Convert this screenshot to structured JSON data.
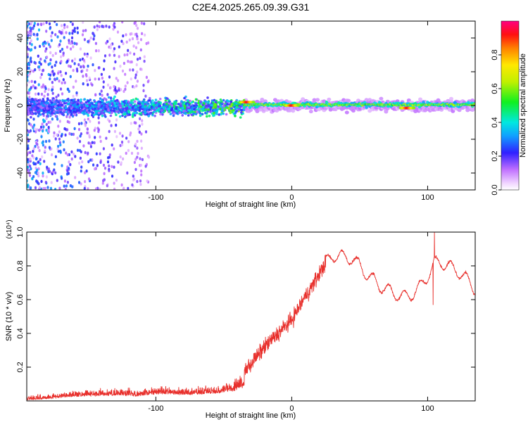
{
  "figure_title": "C2E4.2025.265.09.39.G31",
  "colors": {
    "snr_line": "#e8302c",
    "frame": "#000000",
    "spectrogram_bg": "#ffffff"
  },
  "chart_data": [
    {
      "type": "heatmap",
      "title": "C2E4.2025.265.09.39.G31",
      "xlabel": "Height of straight line (km)",
      "ylabel": "Frequency (Hz)",
      "xlim": [
        -195,
        135
      ],
      "ylim": [
        -50,
        50
      ],
      "x_ticks": [
        -100,
        0,
        100
      ],
      "y_ticks": [
        -40,
        -20,
        0,
        20,
        40
      ],
      "x_tick_labels": [
        "-100",
        "0",
        "100"
      ],
      "y_tick_labels": [
        "-40",
        "-20",
        "0",
        "20",
        "40"
      ],
      "colorbar": {
        "label": "Normalized spectral amplitude",
        "range": [
          0,
          1
        ],
        "ticks": [
          0.0,
          0.2,
          0.4,
          0.6,
          0.8
        ],
        "tick_labels": [
          "0.0",
          "0.2",
          "0.4",
          "0.6",
          "0.8"
        ],
        "colormap": "rainbow (white → magenta → blue → cyan → green → yellow → red)"
      },
      "features": [
        {
          "desc": "broadband scattered noise",
          "x_range": [
            -195,
            -105
          ],
          "freq_range": [
            -50,
            50
          ],
          "amplitude": 0.2
        },
        {
          "desc": "noisy band around 0 Hz",
          "x_range": [
            -195,
            -35
          ],
          "freq_range": [
            -8,
            6
          ],
          "amplitude": 0.35
        },
        {
          "desc": "stable narrow signal near 0 Hz",
          "x_range": [
            -35,
            135
          ],
          "freq_range": [
            -2,
            3
          ],
          "amplitude": 0.7
        },
        {
          "desc": "peak",
          "x": -33,
          "freq": 2,
          "amplitude": 0.95
        },
        {
          "desc": "peak",
          "x": 0,
          "freq": 0,
          "amplitude": 0.95
        },
        {
          "desc": "peak",
          "x": 85,
          "freq": -1.5,
          "amplitude": 0.95
        }
      ]
    },
    {
      "type": "line",
      "xlabel": "Height of straight line (km)",
      "ylabel": "SNR (10 * v/v)",
      "y_scale_label": "(x10⁴)",
      "xlim": [
        -195,
        135
      ],
      "ylim": [
        0,
        1.0
      ],
      "x_ticks": [
        -100,
        0,
        100
      ],
      "y_ticks": [
        0.2,
        0.4,
        0.6,
        0.8,
        1.0
      ],
      "x_tick_labels": [
        "-100",
        "0",
        "100"
      ],
      "y_tick_labels": [
        "0.2",
        "0.4",
        "0.6",
        "0.8",
        "1.0"
      ],
      "series": [
        {
          "name": "SNR",
          "x": [
            -195,
            -185,
            -175,
            -165,
            -155,
            -145,
            -135,
            -125,
            -115,
            -105,
            -95,
            -85,
            -75,
            -65,
            -55,
            -45,
            -40,
            -35,
            -30,
            -25,
            -20,
            -15,
            -10,
            -5,
            0,
            5,
            10,
            15,
            20,
            25,
            30,
            35,
            40,
            45,
            50,
            55,
            60,
            65,
            70,
            75,
            80,
            85,
            90,
            95,
            100,
            103,
            105,
            110,
            115,
            120,
            125,
            130,
            135
          ],
          "values": [
            0.01,
            0.02,
            0.03,
            0.05,
            0.06,
            0.06,
            0.07,
            0.07,
            0.06,
            0.08,
            0.09,
            0.08,
            0.08,
            0.09,
            0.1,
            0.12,
            0.14,
            0.18,
            0.22,
            0.27,
            0.32,
            0.36,
            0.4,
            0.44,
            0.48,
            0.55,
            0.62,
            0.68,
            0.75,
            0.82,
            0.86,
            0.86,
            0.85,
            0.84,
            0.8,
            0.75,
            0.72,
            0.68,
            0.66,
            0.64,
            0.62,
            0.62,
            0.64,
            0.68,
            0.74,
            0.78,
            0.82,
            0.82,
            0.8,
            0.78,
            0.75,
            0.71,
            0.66
          ]
        }
      ],
      "annotations": [
        {
          "desc": "sharp spike",
          "x": 105,
          "y": 1.0
        },
        {
          "desc": "sharp dip",
          "x": 104,
          "y": 0.57
        }
      ]
    }
  ]
}
